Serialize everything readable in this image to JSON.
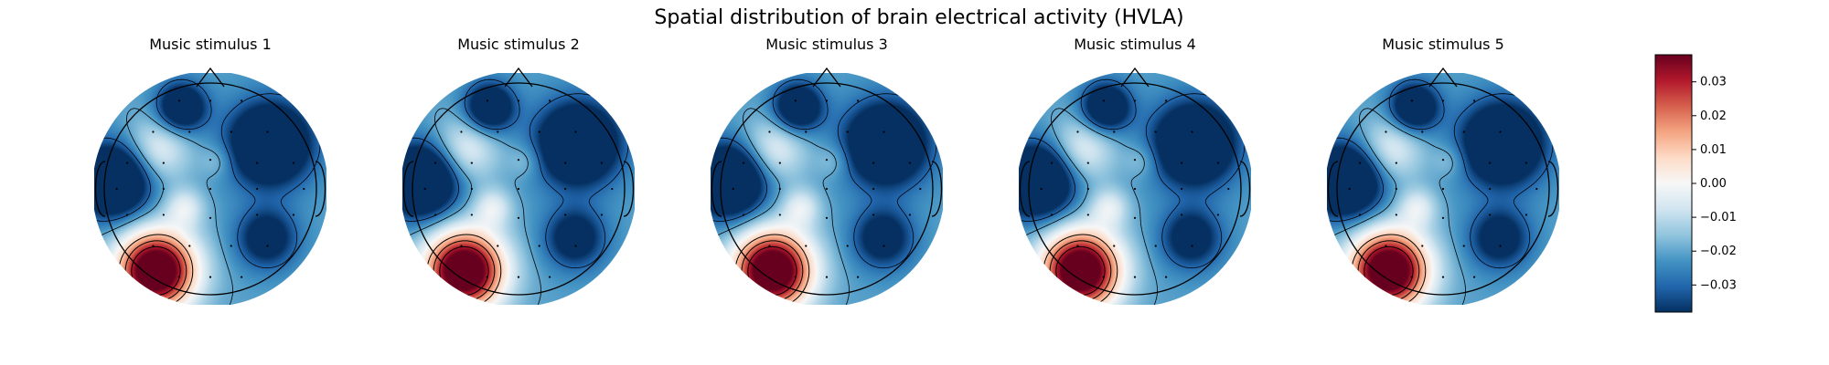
{
  "chart_data": {
    "type": "heatmap",
    "title": "Spatial distribution of brain electrical activity (HVLA)",
    "panels": [
      {
        "title": "Music stimulus 1"
      },
      {
        "title": "Music stimulus 2"
      },
      {
        "title": "Music stimulus 3"
      },
      {
        "title": "Music stimulus 4"
      },
      {
        "title": "Music stimulus 5"
      }
    ],
    "colorbar": {
      "colormap": "RdBu_r",
      "range": [
        -0.038,
        0.038
      ],
      "ticks": [
        0.03,
        0.02,
        0.01,
        0.0,
        -0.01,
        -0.02,
        -0.03
      ],
      "tick_labels": [
        "0.03",
        "0.02",
        "0.01",
        "0.00",
        "−0.01",
        "−0.02",
        "−0.03"
      ]
    },
    "sources": [
      {
        "x": -0.53,
        "y": -0.8,
        "v": 0.075,
        "s": 0.27
      },
      {
        "x": -0.95,
        "y": 0.08,
        "v": -0.048,
        "s": 0.24
      },
      {
        "x": 0.58,
        "y": 0.44,
        "v": -0.046,
        "s": 0.27
      },
      {
        "x": -0.28,
        "y": 0.8,
        "v": -0.036,
        "s": 0.16
      },
      {
        "x": 0.55,
        "y": -0.48,
        "v": -0.026,
        "s": 0.2
      },
      {
        "x": -0.52,
        "y": 0.38,
        "v": 0.018,
        "s": 0.22
      },
      {
        "x": -0.25,
        "y": -0.18,
        "v": 0.016,
        "s": 0.13
      },
      {
        "x": 0.08,
        "y": 0.28,
        "v": 0.008,
        "s": 0.12
      }
    ],
    "background_value": -0.021,
    "sensors": [
      [
        -0.3,
        0.85
      ],
      [
        0.0,
        0.85
      ],
      [
        0.3,
        0.85
      ],
      [
        -0.55,
        0.55
      ],
      [
        -0.2,
        0.55
      ],
      [
        0.2,
        0.55
      ],
      [
        0.55,
        0.55
      ],
      [
        -0.8,
        0.25
      ],
      [
        -0.45,
        0.25
      ],
      [
        0.0,
        0.28
      ],
      [
        0.45,
        0.25
      ],
      [
        0.8,
        0.25
      ],
      [
        -0.9,
        0.0
      ],
      [
        -0.45,
        0.0
      ],
      [
        0.0,
        0.0
      ],
      [
        0.45,
        0.0
      ],
      [
        0.9,
        0.0
      ],
      [
        -0.8,
        -0.25
      ],
      [
        -0.45,
        -0.25
      ],
      [
        0.0,
        -0.28
      ],
      [
        0.45,
        -0.25
      ],
      [
        0.8,
        -0.25
      ],
      [
        -0.55,
        -0.55
      ],
      [
        -0.2,
        -0.55
      ],
      [
        0.2,
        -0.55
      ],
      [
        0.55,
        -0.55
      ],
      [
        -0.3,
        -0.85
      ],
      [
        0.0,
        -0.85
      ],
      [
        0.3,
        -0.85
      ]
    ],
    "contour_levels": [
      -0.03,
      -0.02,
      0.01,
      0.02,
      0.03
    ],
    "grid": false
  }
}
